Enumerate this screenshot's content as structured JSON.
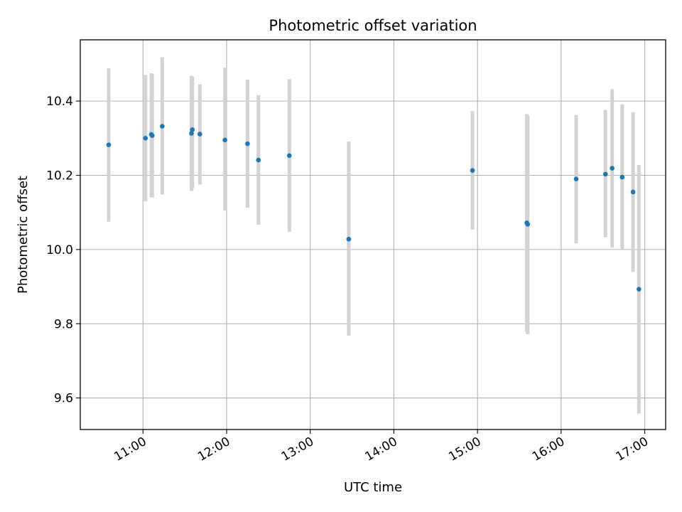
{
  "chart_data": {
    "type": "scatter",
    "title": "Photometric offset variation",
    "xlabel": "UTC time",
    "ylabel": "Photometric offset",
    "x_unit": "hours (UTC)",
    "xlim": [
      10.25,
      17.25
    ],
    "ylim": [
      9.515,
      10.565
    ],
    "x_ticks": [
      {
        "value": 11,
        "label": "11:00"
      },
      {
        "value": 12,
        "label": "12:00"
      },
      {
        "value": 13,
        "label": "13:00"
      },
      {
        "value": 14,
        "label": "14:00"
      },
      {
        "value": 15,
        "label": "15:00"
      },
      {
        "value": 16,
        "label": "16:00"
      },
      {
        "value": 17,
        "label": "17:00"
      }
    ],
    "y_ticks": [
      {
        "value": 9.6,
        "label": "9.6"
      },
      {
        "value": 9.8,
        "label": "9.8"
      },
      {
        "value": 10.0,
        "label": "10.0"
      },
      {
        "value": 10.2,
        "label": "10.2"
      },
      {
        "value": 10.4,
        "label": "10.4"
      }
    ],
    "grid": true,
    "colors": {
      "point": "#1f77b4",
      "errorbar": "#d3d3d3",
      "grid": "#b0b0b0"
    },
    "points": [
      {
        "x": 10.59,
        "y": 10.282,
        "ylo": 10.075,
        "yhi": 10.488
      },
      {
        "x": 11.03,
        "y": 10.3,
        "ylo": 10.13,
        "yhi": 10.47
      },
      {
        "x": 11.1,
        "y": 10.31,
        "ylo": 10.142,
        "yhi": 10.475
      },
      {
        "x": 11.11,
        "y": 10.307,
        "ylo": 10.14,
        "yhi": 10.472
      },
      {
        "x": 11.23,
        "y": 10.332,
        "ylo": 10.148,
        "yhi": 10.518
      },
      {
        "x": 11.58,
        "y": 10.313,
        "ylo": 10.158,
        "yhi": 10.468
      },
      {
        "x": 11.59,
        "y": 10.323,
        "ylo": 10.165,
        "yhi": 10.465
      },
      {
        "x": 11.68,
        "y": 10.311,
        "ylo": 10.175,
        "yhi": 10.445
      },
      {
        "x": 11.98,
        "y": 10.295,
        "ylo": 10.105,
        "yhi": 10.49
      },
      {
        "x": 12.25,
        "y": 10.285,
        "ylo": 10.113,
        "yhi": 10.458
      },
      {
        "x": 12.38,
        "y": 10.241,
        "ylo": 10.067,
        "yhi": 10.416
      },
      {
        "x": 12.75,
        "y": 10.253,
        "ylo": 10.048,
        "yhi": 10.459
      },
      {
        "x": 13.46,
        "y": 10.028,
        "ylo": 9.768,
        "yhi": 10.291
      },
      {
        "x": 14.94,
        "y": 10.213,
        "ylo": 10.054,
        "yhi": 10.373
      },
      {
        "x": 15.59,
        "y": 10.072,
        "ylo": 9.778,
        "yhi": 10.365
      },
      {
        "x": 15.6,
        "y": 10.068,
        "ylo": 9.772,
        "yhi": 10.36
      },
      {
        "x": 16.18,
        "y": 10.19,
        "ylo": 10.017,
        "yhi": 10.362
      },
      {
        "x": 16.53,
        "y": 10.203,
        "ylo": 10.033,
        "yhi": 10.376
      },
      {
        "x": 16.61,
        "y": 10.219,
        "ylo": 10.005,
        "yhi": 10.432
      },
      {
        "x": 16.73,
        "y": 10.195,
        "ylo": 10.0,
        "yhi": 10.391
      },
      {
        "x": 16.86,
        "y": 10.155,
        "ylo": 9.94,
        "yhi": 10.37
      },
      {
        "x": 16.93,
        "y": 9.893,
        "ylo": 9.558,
        "yhi": 10.228
      }
    ]
  }
}
